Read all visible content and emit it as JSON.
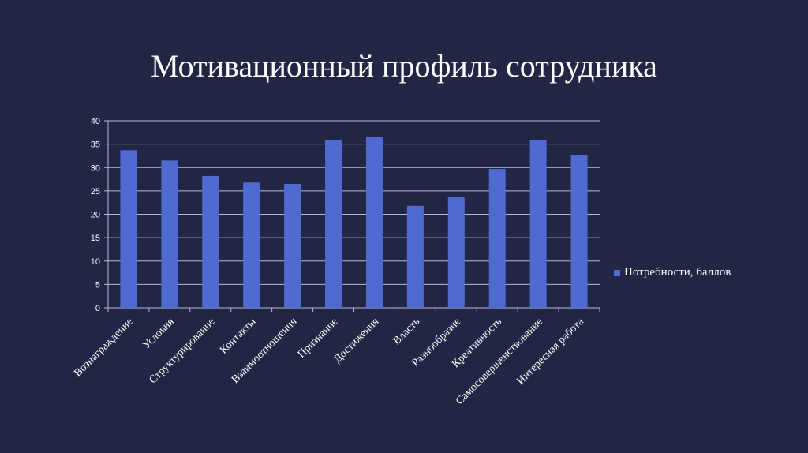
{
  "slide": {
    "title": "Мотивационный профиль сотрудника"
  },
  "colors": {
    "background": "#222645",
    "bar": "#4f6bd1",
    "grid": "#b8bcd0",
    "text": "#ffffff"
  },
  "chart_data": {
    "type": "bar",
    "title": "",
    "xlabel": "",
    "ylabel": "",
    "ylim": [
      0,
      40
    ],
    "yticks": [
      0,
      5,
      10,
      15,
      20,
      25,
      30,
      35,
      40
    ],
    "grid": true,
    "legend_position": "right",
    "categories": [
      "Вознаграждение",
      "Условия",
      "Структурирование",
      "Контакты",
      "Взаимоотношения",
      "Признание",
      "Достижения",
      "Власть",
      "Разнообразие",
      "Креативность",
      "Самосовершенствование",
      "Интересная работа"
    ],
    "series": [
      {
        "name": "Потребности, баллов",
        "values": [
          33.7,
          31.5,
          28.2,
          26.8,
          26.5,
          35.9,
          36.6,
          21.8,
          23.7,
          29.7,
          35.9,
          32.7
        ]
      }
    ]
  }
}
